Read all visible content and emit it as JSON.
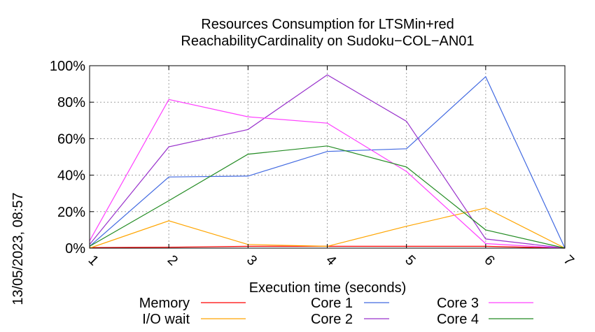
{
  "chart_data": {
    "type": "line",
    "title_lines": [
      "Resources Consumption for LTSMin+red",
      "ReachabilityCardinality on Sudoku−COL−AN01"
    ],
    "xlabel": "Execution time (seconds)",
    "ylabel": "",
    "timestamp": "13/05/2023, 08:57",
    "xlim": [
      1,
      7
    ],
    "ylim": [
      0,
      100
    ],
    "x_ticks": [
      "1",
      "2",
      "3",
      "4",
      "5",
      "6",
      "7"
    ],
    "y_ticks": [
      "0%",
      "20%",
      "40%",
      "60%",
      "80%",
      "100%"
    ],
    "grid": true,
    "legend_position": "bottom",
    "x": [
      1,
      2,
      3,
      4,
      5,
      6,
      7
    ],
    "series": [
      {
        "name": "Memory",
        "color": "#ff0000",
        "values": [
          0.3,
          0.5,
          1.0,
          1.0,
          1.0,
          1.0,
          0
        ]
      },
      {
        "name": "I/O wait",
        "color": "#ffa500",
        "values": [
          0,
          15,
          2,
          1,
          12,
          22,
          0
        ]
      },
      {
        "name": "Core 1",
        "color": "#4169e1",
        "values": [
          1,
          39,
          39.5,
          53,
          54.5,
          94,
          0
        ]
      },
      {
        "name": "Core 2",
        "color": "#9932cc",
        "values": [
          2,
          55.5,
          65,
          95,
          69.5,
          5,
          0
        ]
      },
      {
        "name": "Core 3",
        "color": "#ff40ff",
        "values": [
          4,
          81.5,
          72,
          68.5,
          42,
          2.5,
          0
        ]
      },
      {
        "name": "Core 4",
        "color": "#228b22",
        "values": [
          1,
          26,
          51.5,
          56,
          44.5,
          10,
          0
        ]
      }
    ]
  }
}
